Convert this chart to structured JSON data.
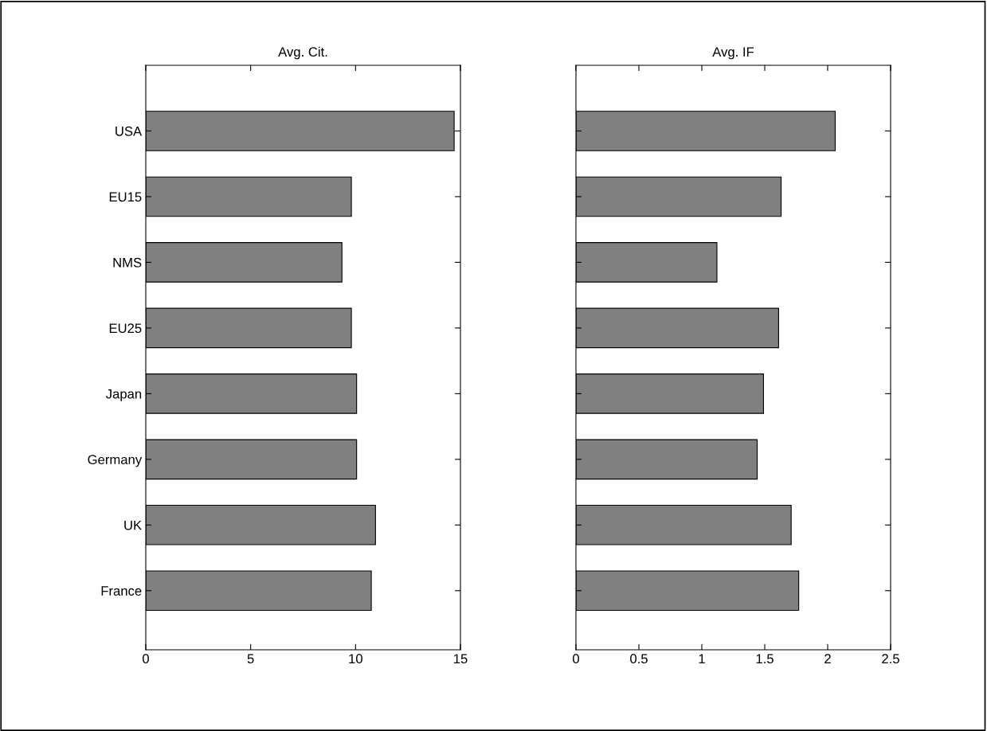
{
  "chart_data": [
    {
      "type": "bar",
      "orientation": "horizontal",
      "title": "Avg. Cit.",
      "categories": [
        "USA",
        "EU15",
        "NMS",
        "EU25",
        "Japan",
        "Germany",
        "UK",
        "France"
      ],
      "values": [
        14.7,
        9.8,
        9.35,
        9.8,
        10.05,
        10.05,
        10.95,
        10.75
      ],
      "color": "#808080",
      "xlim": [
        0,
        15
      ],
      "xticks": [
        0,
        5,
        10,
        15
      ],
      "grid": false,
      "legend": false
    },
    {
      "type": "bar",
      "orientation": "horizontal",
      "title": "Avg. IF",
      "categories": [
        null,
        null,
        null,
        null,
        null,
        null,
        null,
        null
      ],
      "values": [
        2.06,
        1.63,
        1.12,
        1.61,
        1.49,
        1.44,
        1.71,
        1.77
      ],
      "color": "#808080",
      "xlim": [
        0,
        2.5
      ],
      "xticks": [
        0,
        0.5,
        1,
        1.5,
        2,
        2.5
      ],
      "grid": false,
      "legend": false
    }
  ]
}
